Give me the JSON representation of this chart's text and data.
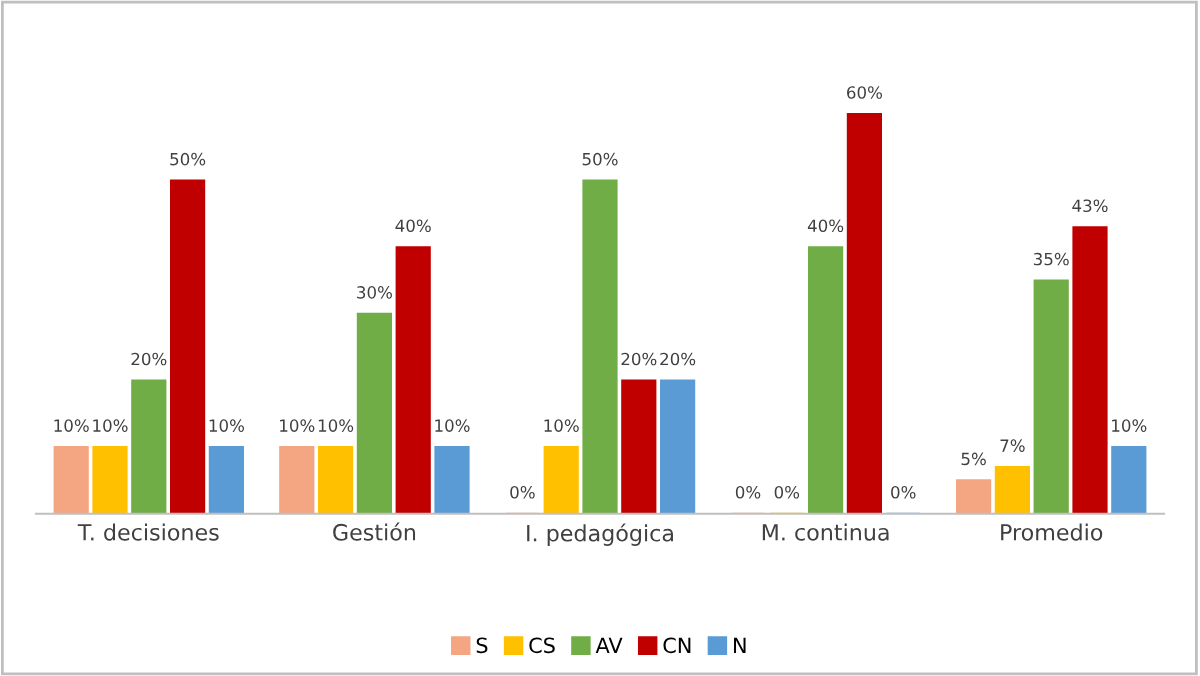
{
  "chart_data": {
    "type": "bar",
    "categories": [
      "T. decisiones",
      "Gestión",
      "I. pedagógica",
      "M. continua",
      "Promedio"
    ],
    "series": [
      {
        "name": "S",
        "color": "#f4a582",
        "values": [
          10,
          10,
          0,
          0,
          5
        ],
        "value_labels": [
          "10%",
          "10%",
          "0%",
          "0%",
          "5%"
        ]
      },
      {
        "name": "CS",
        "color": "#ffc000",
        "values": [
          10,
          10,
          10,
          0,
          7
        ],
        "value_labels": [
          "10%",
          "10%",
          "10%",
          "0%",
          "7%"
        ]
      },
      {
        "name": "AV",
        "color": "#70ad47",
        "values": [
          20,
          30,
          50,
          40,
          35
        ],
        "value_labels": [
          "20%",
          "30%",
          "50%",
          "40%",
          "35%"
        ]
      },
      {
        "name": "CN",
        "color": "#c00000",
        "values": [
          50,
          40,
          20,
          60,
          43
        ],
        "value_labels": [
          "50%",
          "40%",
          "20%",
          "60%",
          "43%"
        ]
      },
      {
        "name": "N",
        "color": "#5b9bd5",
        "values": [
          10,
          10,
          20,
          0,
          10
        ],
        "value_labels": [
          "10%",
          "10%",
          "20%",
          "0%",
          "10%"
        ]
      }
    ],
    "legend": "bottom",
    "grid": false
  }
}
